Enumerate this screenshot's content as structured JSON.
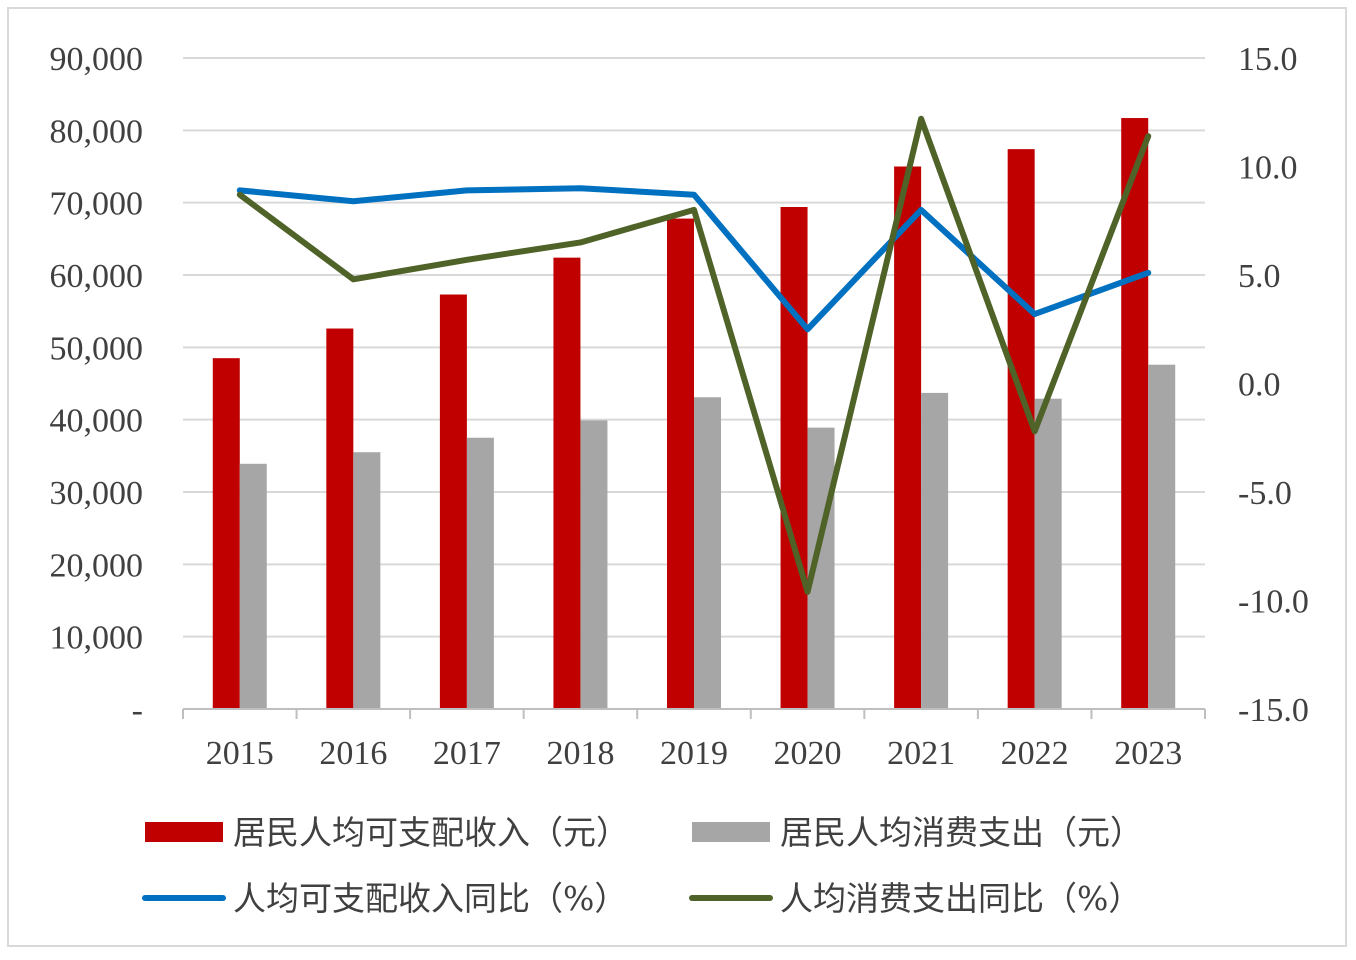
{
  "chart_data": {
    "type": "bar",
    "categories": [
      "2015",
      "2016",
      "2017",
      "2018",
      "2019",
      "2020",
      "2021",
      "2022",
      "2023"
    ],
    "series": [
      {
        "name": "居民人均可支配收入（元）",
        "kind": "bar",
        "axis": "left",
        "color": "#c00000",
        "values": [
          48500,
          52600,
          57300,
          62400,
          67800,
          69400,
          75000,
          77400,
          81700
        ]
      },
      {
        "name": "居民人均消费支出（元）",
        "kind": "bar",
        "axis": "left",
        "color": "#a6a6a6",
        "values": [
          33900,
          35500,
          37500,
          39900,
          43100,
          38900,
          43700,
          42900,
          47600
        ]
      },
      {
        "name": "人均可支配收入同比（%）",
        "kind": "line",
        "axis": "right",
        "color": "#0070c0",
        "values": [
          8.9,
          8.4,
          8.9,
          9.0,
          8.7,
          2.5,
          8.0,
          3.2,
          5.1
        ]
      },
      {
        "name": "人均消费支出同比（%）",
        "kind": "line",
        "axis": "right",
        "color": "#4f6228",
        "values": [
          8.7,
          4.8,
          5.7,
          6.5,
          8.0,
          -9.6,
          12.2,
          -2.2,
          11.4
        ]
      }
    ],
    "left_axis": {
      "ylim": [
        0,
        90000
      ],
      "ticks": [
        "-",
        "10,000",
        "20,000",
        "30,000",
        "40,000",
        "50,000",
        "60,000",
        "70,000",
        "80,000",
        "90,000"
      ]
    },
    "right_axis": {
      "ylim": [
        -15,
        15
      ],
      "ticks": [
        "-15.0",
        "-10.0",
        "-5.0",
        "0.0",
        "5.0",
        "10.0",
        "15.0"
      ]
    },
    "grid": true,
    "legend_position": "bottom"
  }
}
